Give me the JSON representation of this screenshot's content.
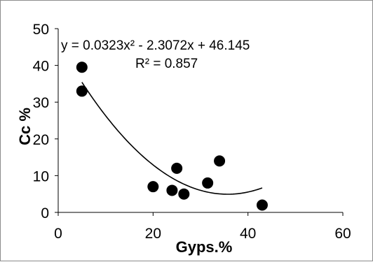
{
  "chart_data": {
    "type": "scatter",
    "x": [
      5,
      5,
      20,
      24,
      25,
      26.5,
      31.5,
      34,
      43
    ],
    "y": [
      39.5,
      33,
      7,
      6,
      12,
      5,
      8,
      14,
      2
    ],
    "xlabel": "Gyps.%",
    "ylabel": "Cc %",
    "xlim": [
      0,
      60
    ],
    "ylim": [
      0,
      50
    ],
    "x_ticks": [
      "0",
      "20",
      "40",
      "60"
    ],
    "y_ticks": [
      "0",
      "10",
      "20",
      "30",
      "40",
      "50"
    ],
    "grid": false,
    "legend": false,
    "trendline": {
      "type": "polynomial",
      "coefficients": [
        0.0323,
        -2.3072,
        46.145
      ],
      "x_range": [
        5,
        43
      ],
      "equation": "y = 0.0323x² - 2.3072x + 46.145",
      "r_squared": "R² = 0.857"
    },
    "colors": {
      "marker": "#000000",
      "line": "#000000",
      "axis": "#000000",
      "frame": "#8c8c8c"
    }
  }
}
